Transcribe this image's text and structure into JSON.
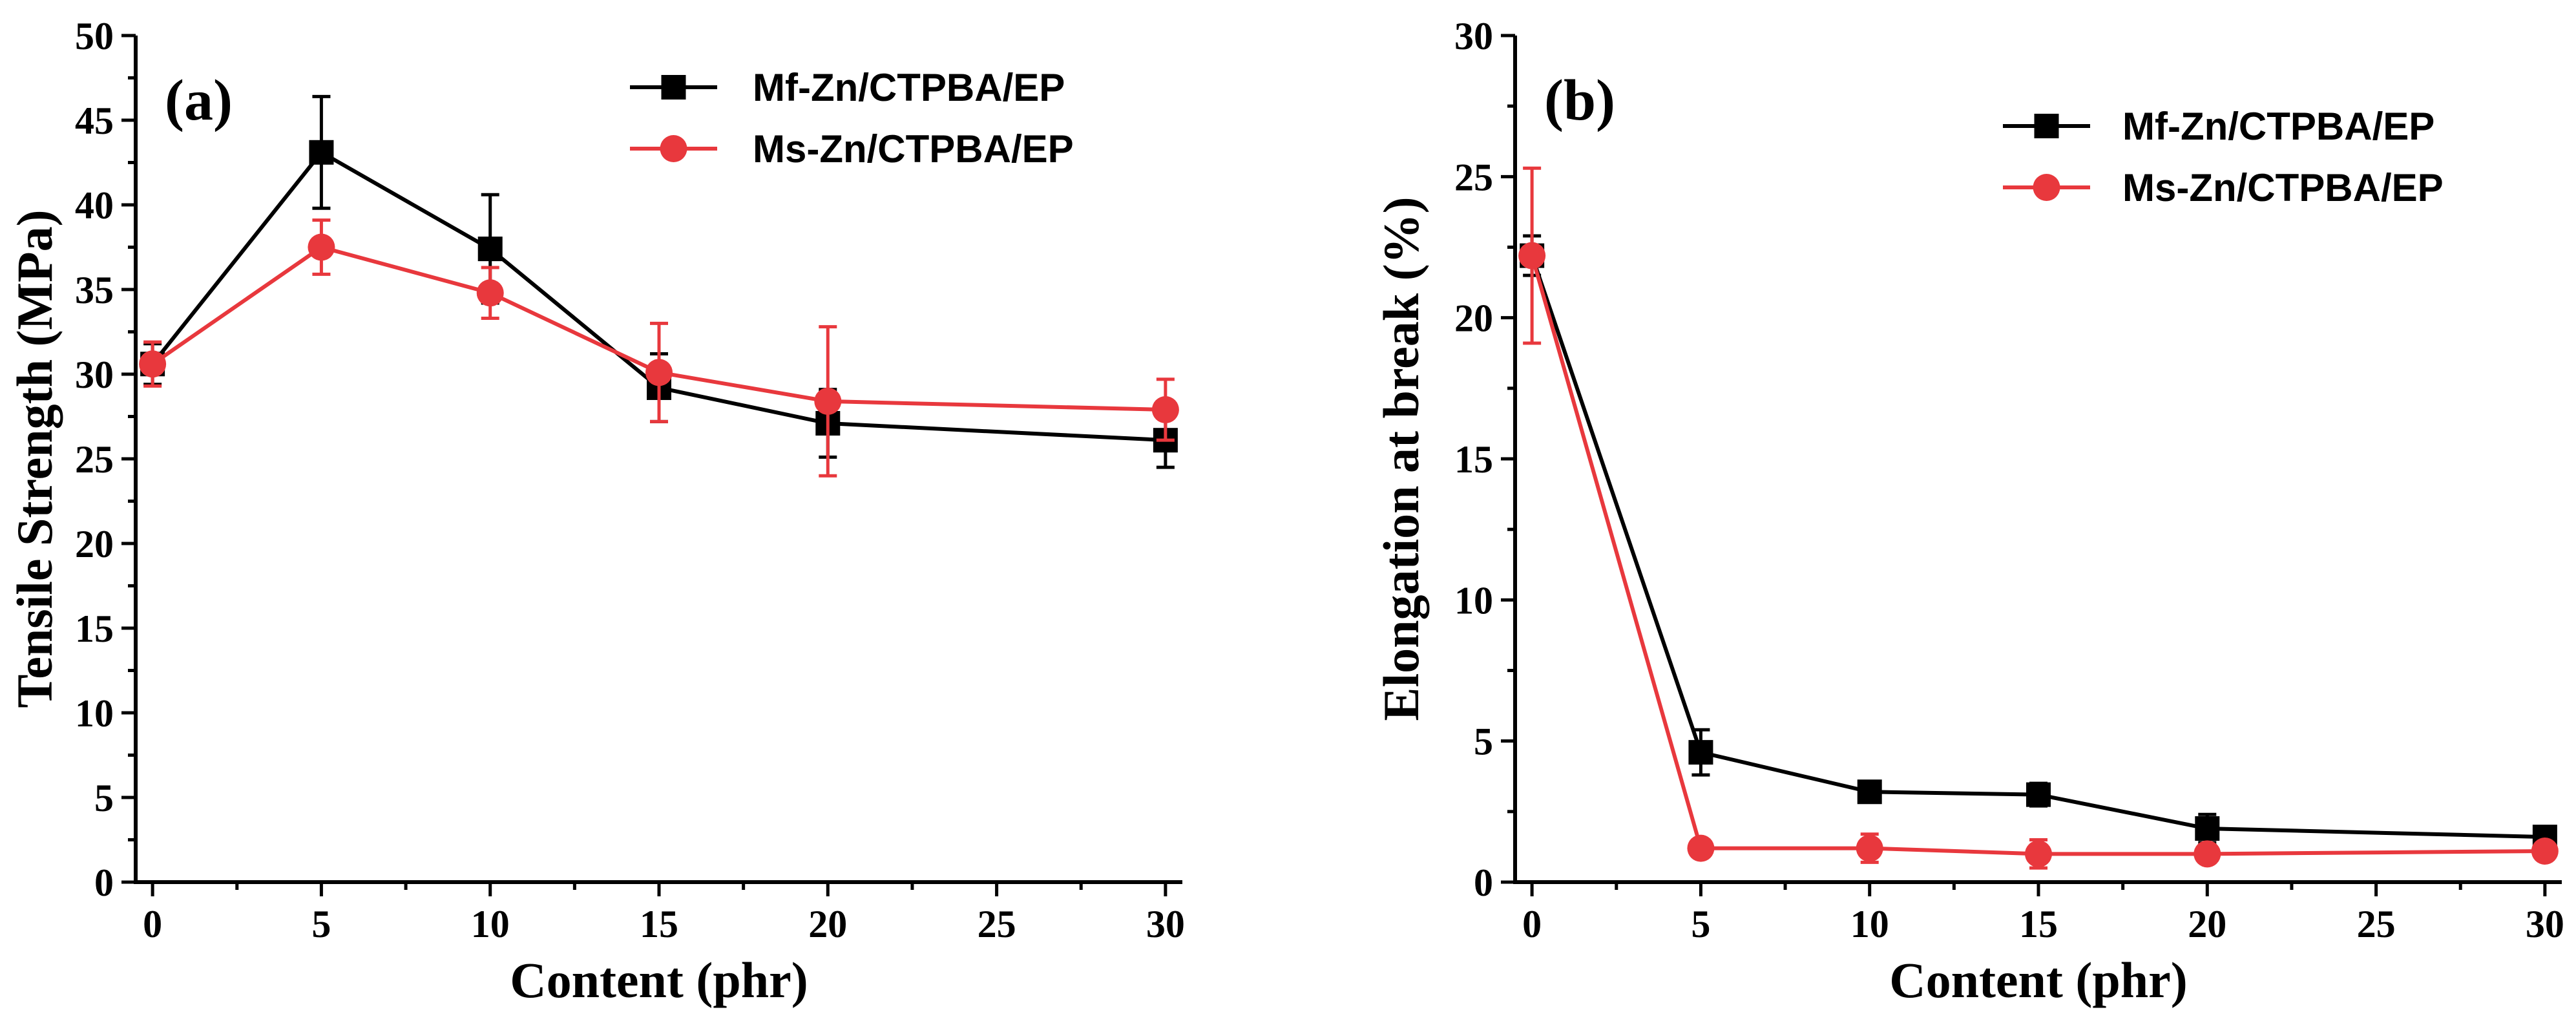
{
  "chart_data": [
    {
      "type": "line",
      "panel_label": "(a)",
      "xlabel": "Content (phr)",
      "ylabel": "Tensile Strength (MPa)",
      "xlim": [
        -0.5,
        30.5
      ],
      "ylim": [
        0,
        50
      ],
      "xticks": [
        0,
        5,
        10,
        15,
        20,
        25,
        30
      ],
      "yticks": [
        0,
        5,
        10,
        15,
        20,
        25,
        30,
        35,
        40,
        45,
        50
      ],
      "x": [
        0,
        5,
        10,
        15,
        20,
        30
      ],
      "legend_position": "top-right",
      "series": [
        {
          "name": "Mf-Zn/CTPBA/EP",
          "color": "#000000",
          "marker": "square",
          "values": [
            30.6,
            43.1,
            37.4,
            29.2,
            27.1,
            26.1
          ],
          "errors": [
            1.2,
            3.3,
            3.2,
            2.0,
            2.0,
            1.6
          ]
        },
        {
          "name": "Ms-Zn/CTPBA/EP",
          "color": "#e8383d",
          "marker": "circle",
          "values": [
            30.6,
            37.5,
            34.8,
            30.1,
            28.4,
            27.9
          ],
          "errors": [
            1.3,
            1.6,
            1.5,
            2.9,
            4.4,
            1.8
          ]
        }
      ]
    },
    {
      "type": "line",
      "panel_label": "(b)",
      "xlabel": "Content (phr)",
      "ylabel": "Elongation at break (%)",
      "xlim": [
        -0.5,
        30.5
      ],
      "ylim": [
        0,
        30
      ],
      "xticks": [
        0,
        5,
        10,
        15,
        20,
        25,
        30
      ],
      "yticks": [
        0,
        5,
        10,
        15,
        20,
        25,
        30
      ],
      "x": [
        0,
        5,
        10,
        15,
        20,
        30
      ],
      "legend_position": "top-right",
      "series": [
        {
          "name": "Mf-Zn/CTPBA/EP",
          "color": "#000000",
          "marker": "square",
          "values": [
            22.2,
            4.6,
            3.2,
            3.1,
            1.9,
            1.6
          ],
          "errors": [
            0.7,
            0.8,
            0.3,
            0.4,
            0.5,
            0.3
          ]
        },
        {
          "name": "Ms-Zn/CTPBA/EP",
          "color": "#e8383d",
          "marker": "circle",
          "values": [
            22.2,
            1.2,
            1.2,
            1.0,
            1.0,
            1.1
          ],
          "errors": [
            3.1,
            0.2,
            0.5,
            0.5,
            0.2,
            0.2
          ]
        }
      ]
    }
  ]
}
